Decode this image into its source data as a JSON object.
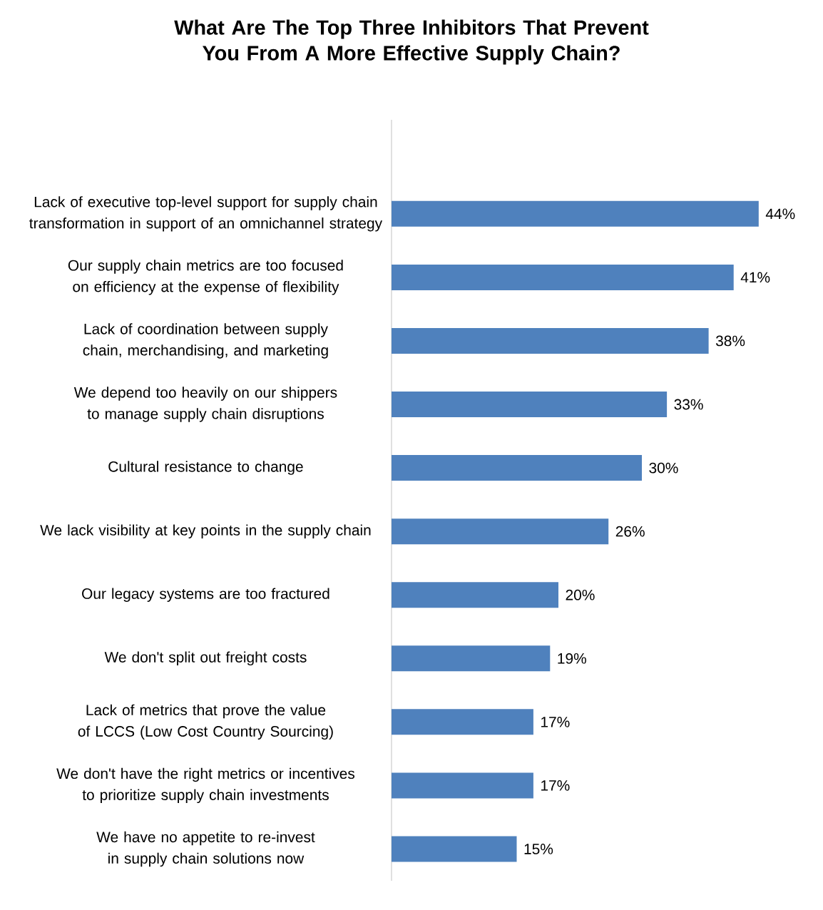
{
  "chart_data": {
    "type": "bar",
    "orientation": "horizontal",
    "title": "What Are The Top Three Inhibitors That Prevent You From A More Effective Supply Chain?",
    "categories": [
      "Lack of executive top-level support for supply chain transformation in support of an omnichannel strategy",
      "Our supply chain metrics are too focused on efficiency at the expense of flexibility",
      "Lack of coordination between supply chain, merchandising, and marketing",
      "We depend too heavily on our shippers to manage supply chain disruptions",
      "Cultural resistance to change",
      "We lack visibility at key points in the supply chain",
      "Our legacy systems are too fractured",
      "We don't split out freight costs",
      "Lack of metrics that prove the value of LCCS (Low Cost Country Sourcing)",
      "We don't have the right metrics or incentives to prioritize supply chain investments",
      "We have no appetite to re-invest in supply chain solutions now"
    ],
    "values": [
      44,
      41,
      38,
      33,
      30,
      26,
      20,
      19,
      17,
      17,
      15
    ],
    "value_labels": [
      "44%",
      "41%",
      "38%",
      "33%",
      "30%",
      "26%",
      "20%",
      "19%",
      "17%",
      "17%",
      "15%"
    ],
    "color": "#4f81bd"
  }
}
